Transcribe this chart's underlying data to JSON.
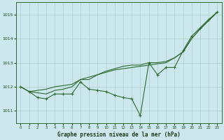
{
  "title": "Graphe pression niveau de la mer (hPa)",
  "background_color": "#cce8ee",
  "grid_color": "#aacccc",
  "line_color": "#2d6b2d",
  "hours": [
    0,
    1,
    2,
    3,
    4,
    5,
    6,
    7,
    8,
    9,
    10,
    11,
    12,
    13,
    14,
    15,
    16,
    17,
    18,
    19,
    20,
    21,
    22,
    23
  ],
  "line1": [
    1012.0,
    1011.8,
    1011.55,
    1011.5,
    1011.7,
    1011.7,
    1011.7,
    1012.2,
    1011.9,
    1011.85,
    1011.8,
    1011.65,
    1011.55,
    1011.5,
    1010.8,
    1013.0,
    1012.5,
    1012.8,
    1012.8,
    1013.5,
    1014.1,
    1014.45,
    1014.8,
    1015.1
  ],
  "line2": [
    1012.0,
    1011.8,
    1011.85,
    1011.9,
    1012.0,
    1012.05,
    1012.1,
    1012.3,
    1012.4,
    1012.5,
    1012.6,
    1012.7,
    1012.75,
    1012.8,
    1012.85,
    1012.9,
    1012.95,
    1013.0,
    1013.2,
    1013.45,
    1014.0,
    1014.4,
    1014.75,
    1015.1
  ],
  "line3": [
    1012.0,
    1011.8,
    1011.75,
    1011.7,
    1011.85,
    1011.9,
    1012.0,
    1012.3,
    1012.3,
    1012.5,
    1012.65,
    1012.75,
    1012.85,
    1012.9,
    1012.9,
    1013.0,
    1013.0,
    1013.05,
    1013.2,
    1013.45,
    1014.0,
    1014.4,
    1014.75,
    1015.1
  ],
  "ylim": [
    1010.5,
    1015.5
  ],
  "yticks": [
    1011,
    1012,
    1013,
    1014,
    1015
  ],
  "xlim": [
    -0.5,
    23.5
  ],
  "xticks": [
    0,
    1,
    2,
    3,
    4,
    5,
    6,
    7,
    8,
    9,
    10,
    11,
    12,
    13,
    14,
    15,
    16,
    17,
    18,
    19,
    20,
    21,
    22,
    23
  ]
}
